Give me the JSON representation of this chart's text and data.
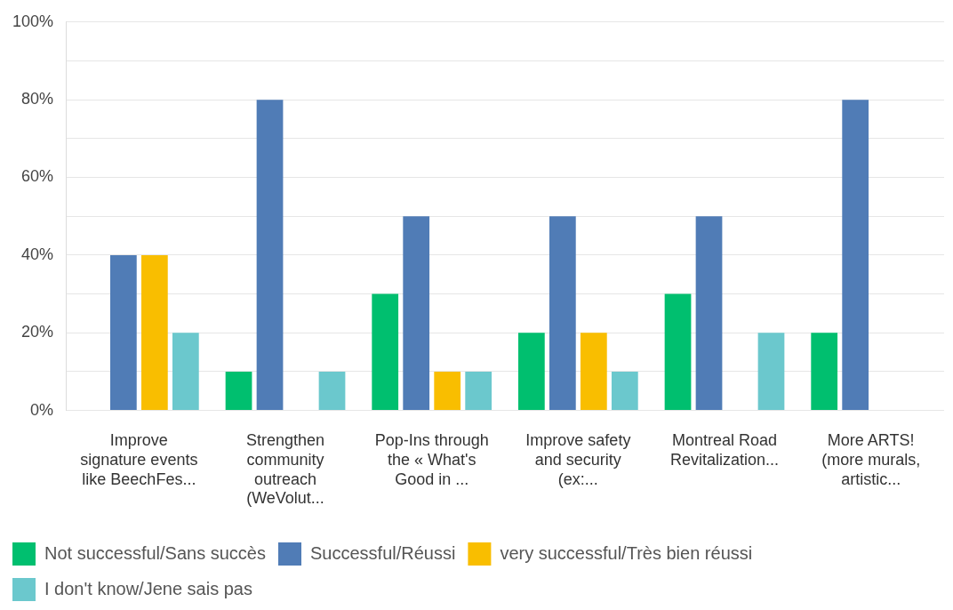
{
  "chart_data": {
    "type": "bar",
    "categories": [
      "Improve signature events like BeechFes...",
      "Strengthen community outreach (WeVolut...",
      "Pop-Ins through the « What's Good in ...",
      "Improve safety and security (ex:...",
      "Montreal Road Revitalization...",
      "More ARTS! (more murals, artistic..."
    ],
    "series": [
      {
        "name": "Not successful/Sans succès",
        "color": "#00bf6f",
        "values": [
          0,
          10,
          30,
          20,
          30,
          20
        ]
      },
      {
        "name": "Successful/Réussi",
        "color": "#507cb6",
        "values": [
          40,
          80,
          50,
          50,
          50,
          80
        ]
      },
      {
        "name": "very successful/Très bien réussi",
        "color": "#f9be00",
        "values": [
          40,
          0,
          10,
          20,
          0,
          0
        ]
      },
      {
        "name": "I don't know/Jene sais pas",
        "color": "#6bc8cd",
        "values": [
          20,
          10,
          10,
          10,
          20,
          0
        ]
      }
    ],
    "ylim": [
      0,
      100
    ],
    "yticks": [
      {
        "value": 0,
        "label": "0%"
      },
      {
        "value": 10,
        "label": null
      },
      {
        "value": 20,
        "label": "20%"
      },
      {
        "value": 30,
        "label": null
      },
      {
        "value": 40,
        "label": "40%"
      },
      {
        "value": 50,
        "label": null
      },
      {
        "value": 60,
        "label": "60%"
      },
      {
        "value": 70,
        "label": null
      },
      {
        "value": 80,
        "label": "80%"
      },
      {
        "value": 90,
        "label": null
      },
      {
        "value": 100,
        "label": "100%"
      }
    ],
    "grid": "y",
    "legend": "bottom"
  }
}
